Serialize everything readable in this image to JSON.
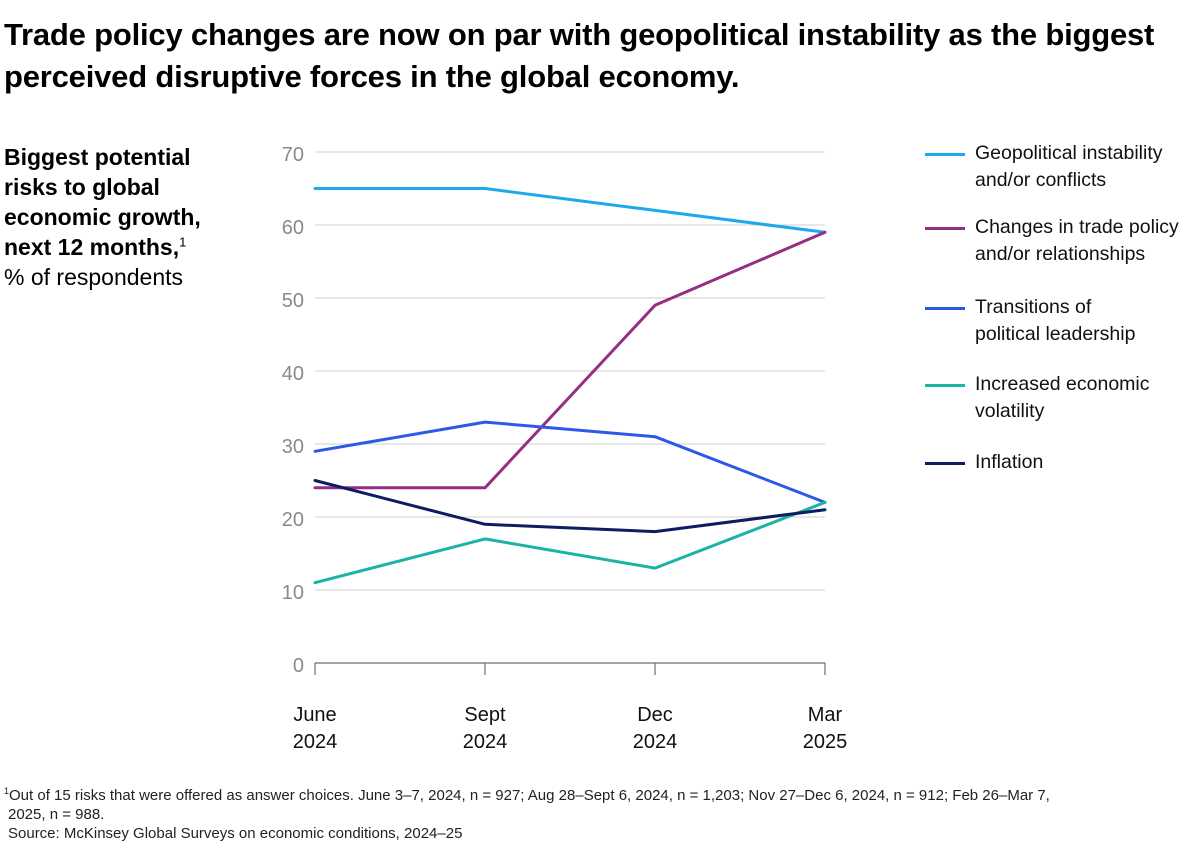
{
  "chart_data": {
    "type": "line",
    "title": "Trade policy changes are now on par with geopolitical instability as the biggest perceived disruptive forces in the global economy.",
    "ylabel_bold": "Biggest potential risks to global economic growth, next 12 months,",
    "ylabel_sup": "1",
    "ylabel_unit": "% of respondents",
    "categories": [
      [
        "June",
        "2024"
      ],
      [
        "Sept",
        "2024"
      ],
      [
        "Dec",
        "2024"
      ],
      [
        "Mar",
        "2025"
      ]
    ],
    "ylim": [
      0,
      70
    ],
    "yticks": [
      0,
      10,
      20,
      30,
      40,
      50,
      60,
      70
    ],
    "grid": true,
    "legend_position": "right",
    "series": [
      {
        "name": "Geopolitical instability and/or conflicts",
        "label_lines": [
          "Geopolitical instability",
          "and/or conflicts"
        ],
        "color": "#1fa8ec",
        "values": [
          65,
          65,
          62,
          59
        ]
      },
      {
        "name": "Changes in trade policy and/or relationships",
        "label_lines": [
          "Changes in trade policy",
          "and/or relationships"
        ],
        "color": "#952f86",
        "values": [
          24,
          24,
          49,
          59
        ]
      },
      {
        "name": "Transitions of political leadership",
        "label_lines": [
          "Transitions of",
          "political leadership"
        ],
        "color": "#2c5ae6",
        "values": [
          29,
          33,
          31,
          22
        ]
      },
      {
        "name": "Increased economic volatility",
        "label_lines": [
          "Increased economic",
          "volatility"
        ],
        "color": "#1bb3a6",
        "values": [
          11,
          17,
          13,
          22
        ]
      },
      {
        "name": "Inflation",
        "label_lines": [
          "Inflation"
        ],
        "color": "#0c1d62",
        "values": [
          25,
          19,
          18,
          21
        ]
      }
    ]
  },
  "footnote": {
    "marker": "1",
    "line1": "Out of 15 risks that were offered as answer choices. June 3–7, 2024, n = 927; Aug 28–Sept 6, 2024, n = 1,203; Nov 27–Dec 6, 2024, n = 912; Feb 26–Mar 7,",
    "line2": "2025, n = 988.",
    "source": "Source: McKinsey Global Surveys on economic conditions, 2024–25"
  }
}
